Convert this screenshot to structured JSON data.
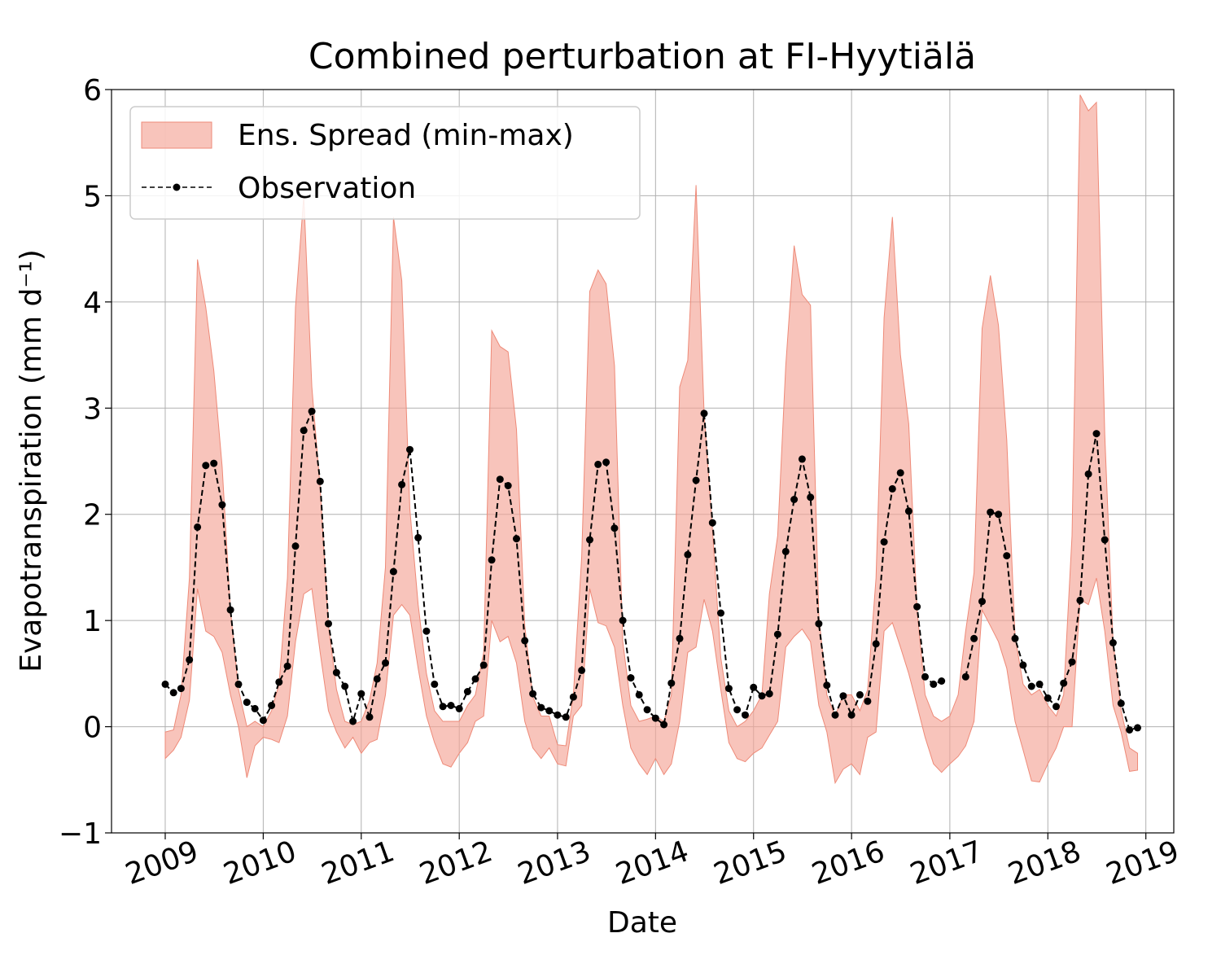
{
  "chart_data": {
    "type": "line",
    "title": "Combined perturbation at FI-Hyytiälä",
    "xlabel": "Date",
    "ylabel": "Evapotranspiration  (mm d⁻¹)",
    "ylim": [
      -1,
      6
    ],
    "xlim": [
      "2008-06-15",
      "2019-04-15"
    ],
    "yticks": [
      "−1",
      "0",
      "1",
      "2",
      "3",
      "4",
      "5",
      "6"
    ],
    "xticks": [
      "2009",
      "2010",
      "2011",
      "2012",
      "2013",
      "2014",
      "2015",
      "2016",
      "2017",
      "2018",
      "2019"
    ],
    "grid": true,
    "legend_position": "top-left",
    "colors": {
      "spread_fill": "#f4a596",
      "spread_edge": "#ee8a78",
      "observation": "#000000"
    },
    "x": [
      "2009-01",
      "2009-02",
      "2009-03",
      "2009-04",
      "2009-05",
      "2009-06",
      "2009-07",
      "2009-08",
      "2009-09",
      "2009-10",
      "2009-11",
      "2009-12",
      "2010-01",
      "2010-02",
      "2010-03",
      "2010-04",
      "2010-05",
      "2010-06",
      "2010-07",
      "2010-08",
      "2010-09",
      "2010-10",
      "2010-11",
      "2010-12",
      "2011-01",
      "2011-02",
      "2011-03",
      "2011-04",
      "2011-05",
      "2011-06",
      "2011-07",
      "2011-08",
      "2011-09",
      "2011-10",
      "2011-11",
      "2011-12",
      "2012-01",
      "2012-02",
      "2012-03",
      "2012-04",
      "2012-05",
      "2012-06",
      "2012-07",
      "2012-08",
      "2012-09",
      "2012-10",
      "2012-11",
      "2012-12",
      "2013-01",
      "2013-02",
      "2013-03",
      "2013-04",
      "2013-05",
      "2013-06",
      "2013-07",
      "2013-08",
      "2013-09",
      "2013-10",
      "2013-11",
      "2013-12",
      "2014-01",
      "2014-02",
      "2014-03",
      "2014-04",
      "2014-05",
      "2014-06",
      "2014-07",
      "2014-08",
      "2014-09",
      "2014-10",
      "2014-11",
      "2014-12",
      "2015-01",
      "2015-02",
      "2015-03",
      "2015-04",
      "2015-05",
      "2015-06",
      "2015-07",
      "2015-08",
      "2015-09",
      "2015-10",
      "2015-11",
      "2015-12",
      "2016-01",
      "2016-02",
      "2016-03",
      "2016-04",
      "2016-05",
      "2016-06",
      "2016-07",
      "2016-08",
      "2016-09",
      "2016-10",
      "2016-11",
      "2016-12",
      "2017-01",
      "2017-02",
      "2017-03",
      "2017-04",
      "2017-05",
      "2017-06",
      "2017-07",
      "2017-08",
      "2017-09",
      "2017-10",
      "2017-11",
      "2017-12",
      "2018-01",
      "2018-02",
      "2018-03",
      "2018-04",
      "2018-05",
      "2018-06",
      "2018-07",
      "2018-08",
      "2018-09",
      "2018-10",
      "2018-11",
      "2018-12"
    ],
    "series": [
      {
        "name": "Ens. Spread (min-max)",
        "kind": "band",
        "lower": [
          -0.3,
          -0.22,
          -0.1,
          0.25,
          1.3,
          0.9,
          0.85,
          0.7,
          0.3,
          0.0,
          -0.48,
          -0.18,
          -0.1,
          -0.12,
          -0.15,
          0.1,
          0.8,
          1.25,
          1.3,
          0.7,
          0.15,
          -0.05,
          -0.2,
          -0.1,
          -0.25,
          -0.15,
          -0.12,
          0.3,
          1.05,
          1.15,
          1.05,
          0.55,
          0.1,
          -0.15,
          -0.35,
          -0.38,
          -0.25,
          -0.15,
          0.05,
          0.1,
          1.0,
          0.8,
          0.85,
          0.6,
          0.05,
          -0.2,
          -0.3,
          -0.2,
          -0.35,
          -0.37,
          0.1,
          0.2,
          1.3,
          0.98,
          0.95,
          0.75,
          0.2,
          -0.2,
          -0.35,
          -0.45,
          -0.3,
          -0.45,
          -0.35,
          0.05,
          0.7,
          0.75,
          1.2,
          0.9,
          0.35,
          -0.15,
          -0.3,
          -0.33,
          -0.25,
          -0.2,
          -0.08,
          0.05,
          0.75,
          0.85,
          0.92,
          0.8,
          0.2,
          -0.05,
          -0.53,
          -0.4,
          -0.35,
          -0.45,
          -0.1,
          -0.05,
          0.9,
          0.98,
          0.75,
          0.5,
          0.2,
          -0.1,
          -0.35,
          -0.43,
          -0.35,
          -0.28,
          -0.18,
          0.05,
          1.1,
          0.95,
          0.8,
          0.55,
          0.05,
          -0.22,
          -0.51,
          -0.52,
          -0.35,
          -0.2,
          0.0,
          0.0,
          1.2,
          1.15,
          1.4,
          0.9,
          0.2,
          -0.05,
          -0.42,
          -0.41
        ],
        "upper": [
          -0.05,
          -0.03,
          0.3,
          1.4,
          4.4,
          3.95,
          3.35,
          2.45,
          1.1,
          0.35,
          0.0,
          0.05,
          0.0,
          0.15,
          0.4,
          1.4,
          3.95,
          5.0,
          3.2,
          2.25,
          0.95,
          0.35,
          0.05,
          0.02,
          0.05,
          0.25,
          0.6,
          1.5,
          4.8,
          4.2,
          2.05,
          1.15,
          0.5,
          0.15,
          0.05,
          0.05,
          0.05,
          0.2,
          0.3,
          0.7,
          3.73,
          3.58,
          3.53,
          2.8,
          0.95,
          0.28,
          0.1,
          0.1,
          -0.17,
          -0.18,
          0.3,
          1.6,
          4.1,
          4.3,
          4.17,
          3.4,
          0.8,
          0.2,
          0.05,
          0.07,
          0.1,
          0.05,
          0.3,
          3.2,
          3.45,
          5.1,
          2.95,
          1.85,
          0.65,
          0.15,
          0.0,
          0.05,
          0.15,
          0.3,
          1.25,
          1.8,
          3.4,
          4.53,
          4.07,
          3.97,
          1.05,
          0.3,
          0.1,
          0.3,
          0.3,
          0.15,
          0.35,
          1.4,
          3.85,
          4.8,
          3.5,
          2.85,
          1.1,
          0.3,
          0.1,
          0.05,
          0.1,
          0.3,
          0.9,
          1.45,
          3.75,
          4.25,
          3.78,
          2.7,
          0.85,
          0.4,
          0.3,
          0.35,
          0.2,
          0.1,
          0.3,
          1.8,
          5.95,
          5.8,
          5.88,
          2.75,
          0.8,
          0.15,
          -0.2,
          -0.25
        ]
      },
      {
        "name": "Observation",
        "kind": "line",
        "values": [
          0.4,
          0.32,
          0.36,
          0.63,
          1.88,
          2.46,
          2.48,
          2.09,
          1.1,
          0.4,
          0.23,
          0.17,
          0.06,
          0.2,
          0.42,
          0.57,
          1.7,
          2.79,
          2.97,
          2.31,
          0.97,
          0.51,
          0.38,
          0.05,
          0.31,
          0.09,
          0.45,
          0.6,
          1.46,
          2.28,
          2.61,
          1.78,
          0.9,
          0.4,
          0.19,
          0.2,
          0.17,
          0.33,
          0.45,
          0.58,
          1.57,
          2.33,
          2.27,
          1.77,
          0.81,
          0.31,
          0.18,
          0.15,
          0.11,
          0.09,
          0.28,
          0.53,
          1.76,
          2.47,
          2.49,
          1.87,
          1.0,
          0.46,
          0.3,
          0.16,
          0.08,
          0.02,
          0.41,
          0.83,
          1.62,
          2.32,
          2.95,
          1.92,
          1.07,
          0.36,
          0.16,
          0.11,
          0.37,
          0.29,
          0.31,
          0.87,
          1.65,
          2.14,
          2.52,
          2.16,
          0.97,
          0.39,
          0.11,
          0.29,
          0.11,
          0.3,
          0.24,
          0.78,
          1.74,
          2.24,
          2.39,
          2.03,
          1.13,
          0.47,
          0.4,
          0.43,
          null,
          null,
          0.47,
          0.83,
          1.18,
          2.02,
          2.0,
          1.61,
          0.83,
          0.58,
          0.38,
          0.4,
          0.27,
          0.19,
          0.41,
          0.61,
          1.19,
          2.38,
          2.76,
          1.76,
          0.79,
          0.22,
          -0.03,
          -0.01
        ]
      }
    ]
  }
}
